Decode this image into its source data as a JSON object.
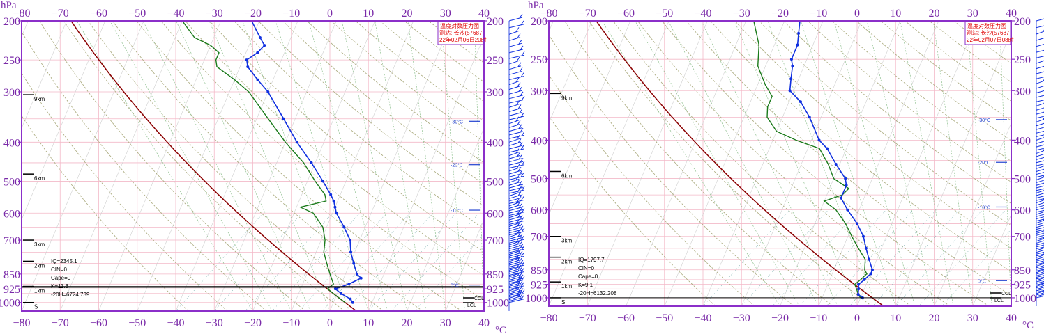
{
  "chart_data": [
    {
      "type": "skew-t log-p",
      "title": "温度对数压力图",
      "station": "测站: 长沙(57687",
      "time": "22年02月06日20时",
      "ylabel": "hPa",
      "xlabel": "°C",
      "xlim": [
        -80,
        40
      ],
      "ylim": [
        200,
        1000
      ],
      "x_ticks": [
        "−80",
        "−70",
        "−60",
        "−50",
        "−40",
        "−30",
        "−20",
        "−10",
        "0",
        "10",
        "20",
        "30",
        "40"
      ],
      "y_ticks": [
        200,
        250,
        300,
        400,
        500,
        600,
        700,
        850,
        925,
        1000
      ],
      "height_marks": [
        "9km",
        "6km",
        "3km",
        "2km",
        "1km",
        "S"
      ],
      "iso_labels": [
        "-30°C",
        "-20°C",
        "-10°C",
        "0°C"
      ],
      "indices": {
        "iq": "IQ=2345.1",
        "cin": "CIN=0",
        "cape": "Cape=0",
        "k": "K=11.6",
        "h20": "-20H=6724.739"
      },
      "ccl_label": "CCL",
      "lcl_label": "LCL",
      "temperature": [
        [
          1000,
          5
        ],
        [
          980,
          4
        ],
        [
          950,
          1
        ],
        [
          925,
          -1
        ],
        [
          900,
          2
        ],
        [
          870,
          4.5
        ],
        [
          850,
          3
        ],
        [
          800,
          1
        ],
        [
          750,
          -1
        ],
        [
          700,
          -2.5
        ],
        [
          650,
          -5.5
        ],
        [
          600,
          -9
        ],
        [
          580,
          -10
        ],
        [
          560,
          -11
        ],
        [
          540,
          -12.5
        ],
        [
          500,
          -16
        ],
        [
          450,
          -21
        ],
        [
          400,
          -27
        ],
        [
          350,
          -33
        ],
        [
          300,
          -40
        ],
        [
          280,
          -44
        ],
        [
          260,
          -48
        ],
        [
          250,
          -49
        ],
        [
          240,
          -47
        ],
        [
          230,
          -46
        ],
        [
          220,
          -48
        ],
        [
          200,
          -52
        ]
      ],
      "dewpoint": [
        [
          1000,
          3
        ],
        [
          950,
          -1
        ],
        [
          925,
          -3
        ],
        [
          900,
          -2
        ],
        [
          850,
          -4
        ],
        [
          800,
          -6
        ],
        [
          750,
          -8
        ],
        [
          700,
          -9
        ],
        [
          650,
          -11
        ],
        [
          600,
          -15
        ],
        [
          580,
          -19
        ],
        [
          560,
          -13
        ],
        [
          540,
          -14
        ],
        [
          500,
          -18
        ],
        [
          450,
          -23
        ],
        [
          400,
          -30
        ],
        [
          350,
          -37
        ],
        [
          300,
          -45
        ],
        [
          280,
          -50
        ],
        [
          260,
          -56
        ],
        [
          250,
          -57
        ],
        [
          240,
          -57
        ],
        [
          230,
          -60
        ],
        [
          220,
          -65
        ],
        [
          200,
          -70
        ]
      ]
    },
    {
      "type": "skew-t log-p",
      "title": "温度对数压力图",
      "station": "测站: 长沙(57687",
      "time": "22年02月07日08时",
      "ylabel": "hPa",
      "xlabel": "°C",
      "xlim": [
        -80,
        40
      ],
      "ylim": [
        200,
        1000
      ],
      "x_ticks": [
        "−80",
        "−70",
        "−60",
        "−50",
        "−40",
        "−30",
        "−20",
        "−10",
        "0",
        "10",
        "20",
        "30",
        "40"
      ],
      "y_ticks": [
        200,
        250,
        300,
        400,
        500,
        600,
        700,
        850,
        925,
        1000
      ],
      "height_marks": [
        "9km",
        "6km",
        "3km",
        "2km",
        "1km",
        "S"
      ],
      "iso_labels": [
        "-30°C",
        "-20°C",
        "-10°C",
        "0°C"
      ],
      "indices": {
        "iq": "IQ=1797.7",
        "cin": "CIN=0",
        "cape": "Cape=0",
        "k": "K=9.1",
        "h20": "-20H=6132.208"
      },
      "ccl_label": "CCL",
      "lcl_label": "LCL",
      "temperature": [
        [
          1000,
          0.5
        ],
        [
          980,
          -1
        ],
        [
          950,
          -1.5
        ],
        [
          925,
          -2
        ],
        [
          900,
          -1
        ],
        [
          870,
          0
        ],
        [
          850,
          0
        ],
        [
          800,
          -2
        ],
        [
          750,
          -4
        ],
        [
          700,
          -6
        ],
        [
          650,
          -9
        ],
        [
          600,
          -13
        ],
        [
          560,
          -16
        ],
        [
          520,
          -16
        ],
        [
          500,
          -17
        ],
        [
          460,
          -21
        ],
        [
          420,
          -25
        ],
        [
          400,
          -28
        ],
        [
          350,
          -33
        ],
        [
          320,
          -37
        ],
        [
          300,
          -41
        ],
        [
          280,
          -42
        ],
        [
          260,
          -43
        ],
        [
          250,
          -44
        ],
        [
          230,
          -44
        ],
        [
          215,
          -45
        ],
        [
          200,
          -46
        ]
      ],
      "dewpoint": [
        [
          1000,
          0
        ],
        [
          980,
          -1
        ],
        [
          950,
          -2
        ],
        [
          925,
          -3
        ],
        [
          900,
          -2
        ],
        [
          870,
          -1
        ],
        [
          850,
          -2
        ],
        [
          800,
          -3
        ],
        [
          750,
          -6
        ],
        [
          700,
          -9
        ],
        [
          650,
          -12
        ],
        [
          600,
          -16
        ],
        [
          570,
          -20
        ],
        [
          550,
          -16
        ],
        [
          530,
          -15
        ],
        [
          500,
          -20
        ],
        [
          460,
          -23
        ],
        [
          420,
          -27
        ],
        [
          400,
          -34
        ],
        [
          380,
          -40
        ],
        [
          350,
          -44
        ],
        [
          330,
          -45
        ],
        [
          310,
          -45
        ],
        [
          290,
          -48
        ],
        [
          260,
          -52
        ],
        [
          230,
          -54
        ],
        [
          200,
          -58
        ]
      ]
    }
  ]
}
